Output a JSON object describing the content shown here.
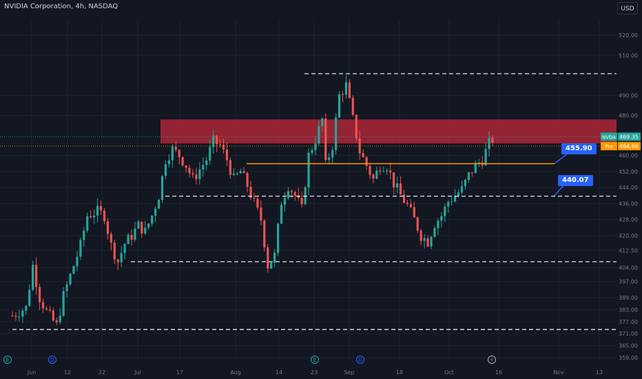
{
  "header": {
    "title": "NVIDIA Corporation, 4h, NASDAQ",
    "currency": "USD"
  },
  "colors": {
    "up": "#26a69a",
    "down": "#ef5350",
    "background": "#131722",
    "grid": "#1f2330",
    "zone": "#c0283a",
    "accent": "#2962ff",
    "orange": "#ff9800"
  },
  "chart_data": {
    "type": "candlestick",
    "symbol": "NVDA",
    "ylim": [
      358,
      528
    ],
    "y_ticks": [
      359.0,
      365.0,
      371.0,
      377.0,
      383.0,
      389.0,
      397.0,
      404.0,
      412.5,
      420.0,
      428.0,
      436.0,
      444.0,
      452.0,
      460.0,
      480.0,
      490.0,
      510.0,
      520.0
    ],
    "x_ticks": [
      "Jun",
      "12",
      "22",
      "Jul",
      "17",
      "Aug",
      "14",
      "23",
      "Sep",
      "18",
      "Oct",
      "16",
      "Nov",
      "13"
    ],
    "horizontal_levels": [
      {
        "value": 500.84,
        "label": "500.84"
      },
      {
        "value": 439.66,
        "label": "439.66"
      },
      {
        "value": 406.93,
        "label": "406.93"
      },
      {
        "value": 373.09,
        "label": "373.09"
      }
    ],
    "resistance_zone": [
      466,
      478
    ],
    "support_line": 455.9,
    "callouts": [
      {
        "value": 455.9,
        "label": "455.90"
      },
      {
        "value": 440.07,
        "label": "440.07"
      }
    ],
    "price_tags": [
      {
        "name": "NVDA",
        "value": 469.35,
        "label": "469.35"
      },
      {
        "name": "Pre",
        "value": 464.66,
        "label": "464.66"
      }
    ],
    "events": [
      "E",
      "D",
      "E",
      "D",
      "⚡"
    ],
    "price_path": [
      [
        0,
        380
      ],
      [
        4,
        384
      ],
      [
        6,
        405
      ],
      [
        8,
        389
      ],
      [
        10,
        382
      ],
      [
        13,
        375
      ],
      [
        15,
        390
      ],
      [
        18,
        405
      ],
      [
        20,
        415
      ],
      [
        22,
        430
      ],
      [
        25,
        432
      ],
      [
        27,
        430
      ],
      [
        29,
        415
      ],
      [
        31,
        407
      ],
      [
        33,
        416
      ],
      [
        35,
        420
      ],
      [
        37,
        425
      ],
      [
        39,
        422
      ],
      [
        41,
        430
      ],
      [
        43,
        440
      ],
      [
        45,
        458
      ],
      [
        47,
        463
      ],
      [
        49,
        460
      ],
      [
        51,
        455
      ],
      [
        53,
        448
      ],
      [
        55,
        453
      ],
      [
        57,
        458
      ],
      [
        59,
        467
      ],
      [
        61,
        465
      ],
      [
        63,
        458
      ],
      [
        65,
        448
      ],
      [
        67,
        452
      ],
      [
        69,
        445
      ],
      [
        71,
        436
      ],
      [
        73,
        428
      ],
      [
        75,
        405
      ],
      [
        77,
        410
      ],
      [
        79,
        437
      ],
      [
        81,
        445
      ],
      [
        83,
        440
      ],
      [
        85,
        433
      ],
      [
        87,
        460
      ],
      [
        89,
        468
      ],
      [
        91,
        478
      ],
      [
        92,
        455
      ],
      [
        94,
        465
      ],
      [
        96,
        490
      ],
      [
        98,
        495
      ],
      [
        100,
        478
      ],
      [
        102,
        462
      ],
      [
        104,
        455
      ],
      [
        106,
        448
      ],
      [
        108,
        455
      ],
      [
        110,
        455
      ],
      [
        112,
        446
      ],
      [
        114,
        440
      ],
      [
        116,
        435
      ],
      [
        118,
        428
      ],
      [
        120,
        420
      ],
      [
        122,
        417
      ],
      [
        124,
        426
      ],
      [
        126,
        430
      ],
      [
        128,
        437
      ],
      [
        130,
        440
      ],
      [
        132,
        443
      ],
      [
        134,
        450
      ],
      [
        136,
        455
      ],
      [
        138,
        458
      ],
      [
        140,
        466
      ],
      [
        141,
        468
      ]
    ]
  }
}
